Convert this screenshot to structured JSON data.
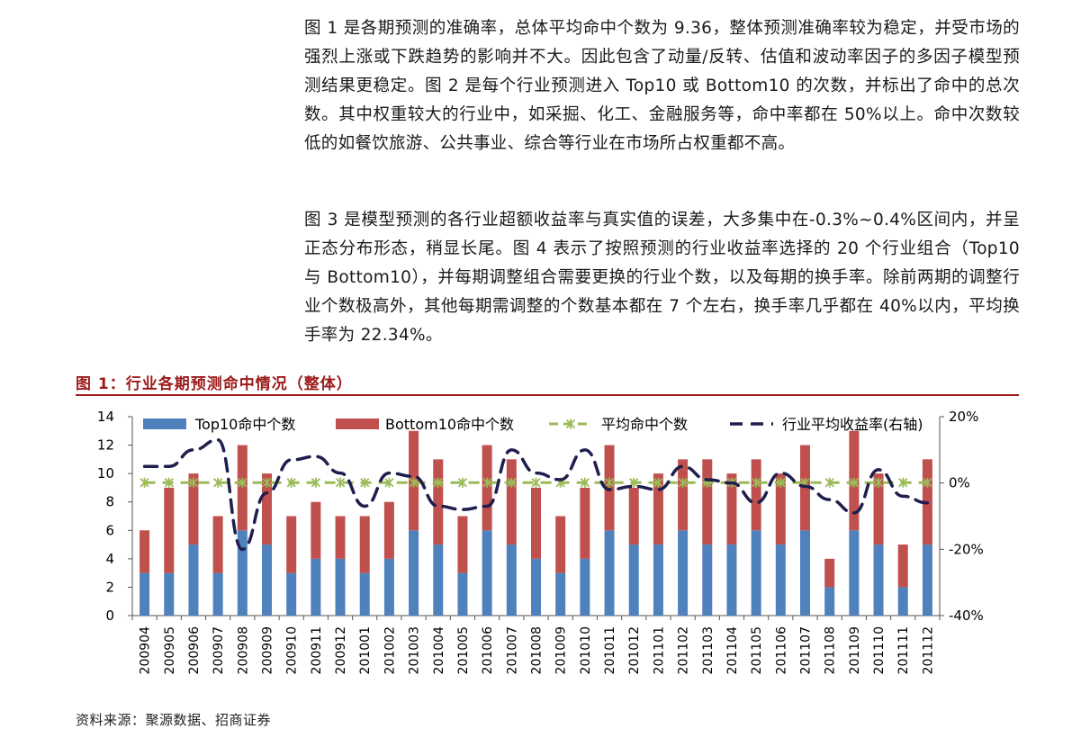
{
  "paragraphs": {
    "p1": "图 1 是各期预测的准确率，总体平均命中个数为 9.36，整体预测准确率较为稳定，并受市场的强烈上涨或下跌趋势的影响并不大。因此包含了动量/反转、估值和波动率因子的多因子模型预测结果更稳定。图 2 是每个行业预测进入 Top10 或 Bottom10 的次数，并标出了命中的总次数。其中权重较大的行业中，如采掘、化工、金融服务等，命中率都在 50%以上。命中次数较低的如餐饮旅游、公共事业、综合等行业在市场所占权重都不高。",
    "p2": "图 3 是模型预测的各行业超额收益率与真实值的误差，大多集中在-0.3%~0.4%区间内，并呈正态分布形态，稍显长尾。图 4 表示了按照预测的行业收益率选择的 20 个行业组合（Top10 与 Bottom10），并每期调整组合需要更换的行业个数，以及每期的换手率。除前两期的调整行业个数极高外，其他每期需调整的个数基本都在 7 个左右，换手率几乎都在 40%以内，平均换手率为 22.34%。"
  },
  "figure": {
    "title": "图 1：行业各期预测命中情况（整体）",
    "source": "资料来源：聚源数据、招商证券"
  },
  "chart_data": {
    "type": "bar",
    "stacked": true,
    "categories": [
      "200904",
      "200905",
      "200906",
      "200907",
      "200908",
      "200909",
      "200910",
      "200911",
      "200912",
      "201001",
      "201002",
      "201003",
      "201004",
      "201005",
      "201006",
      "201007",
      "201008",
      "201009",
      "201010",
      "201011",
      "201012",
      "201101",
      "201102",
      "201103",
      "201104",
      "201105",
      "201106",
      "201107",
      "201108",
      "201109",
      "201110",
      "201111",
      "201112"
    ],
    "series": [
      {
        "name": "Top10命中个数",
        "axis": "left",
        "kind": "bar",
        "color": "#4f81bd",
        "values": [
          3,
          3,
          5,
          3,
          6,
          5,
          3,
          4,
          4,
          3,
          4,
          6,
          5,
          3,
          6,
          5,
          4,
          3,
          4,
          6,
          5,
          5,
          6,
          5,
          5,
          6,
          5,
          6,
          2,
          6,
          5,
          2,
          5
        ]
      },
      {
        "name": "Bottom10命中个数",
        "axis": "left",
        "kind": "bar",
        "color": "#c0504d",
        "values": [
          3,
          6,
          5,
          4,
          6,
          5,
          4,
          4,
          3,
          4,
          4,
          7,
          6,
          4,
          6,
          6,
          5,
          4,
          5,
          6,
          4,
          5,
          5,
          6,
          5,
          5,
          5,
          6,
          2,
          7,
          5,
          3,
          6
        ]
      },
      {
        "name": "平均命中个数",
        "axis": "left",
        "kind": "line",
        "color": "#9bbb59",
        "values": [
          9.36,
          9.36,
          9.36,
          9.36,
          9.36,
          9.36,
          9.36,
          9.36,
          9.36,
          9.36,
          9.36,
          9.36,
          9.36,
          9.36,
          9.36,
          9.36,
          9.36,
          9.36,
          9.36,
          9.36,
          9.36,
          9.36,
          9.36,
          9.36,
          9.36,
          9.36,
          9.36,
          9.36,
          9.36,
          9.36,
          9.36,
          9.36,
          9.36
        ]
      },
      {
        "name": "行业平均收益率(右轴)",
        "axis": "right",
        "kind": "line",
        "color": "#1f1f4f",
        "values": [
          5,
          5,
          10,
          13,
          -20,
          -3,
          7,
          8,
          3,
          -7,
          3,
          2,
          -7,
          -8,
          -7,
          10,
          3,
          1,
          10,
          -2,
          -1,
          -2,
          5,
          1,
          0,
          -6,
          3,
          -1,
          -5,
          -9,
          4,
          -4,
          -6
        ]
      }
    ],
    "ylim": [
      0,
      14
    ],
    "yticks": [
      0,
      2,
      4,
      6,
      8,
      10,
      12,
      14
    ],
    "y2lim": [
      -40,
      20
    ],
    "y2ticks": [
      "-40%",
      "-20%",
      "0%",
      "20%"
    ],
    "legend": "top"
  }
}
